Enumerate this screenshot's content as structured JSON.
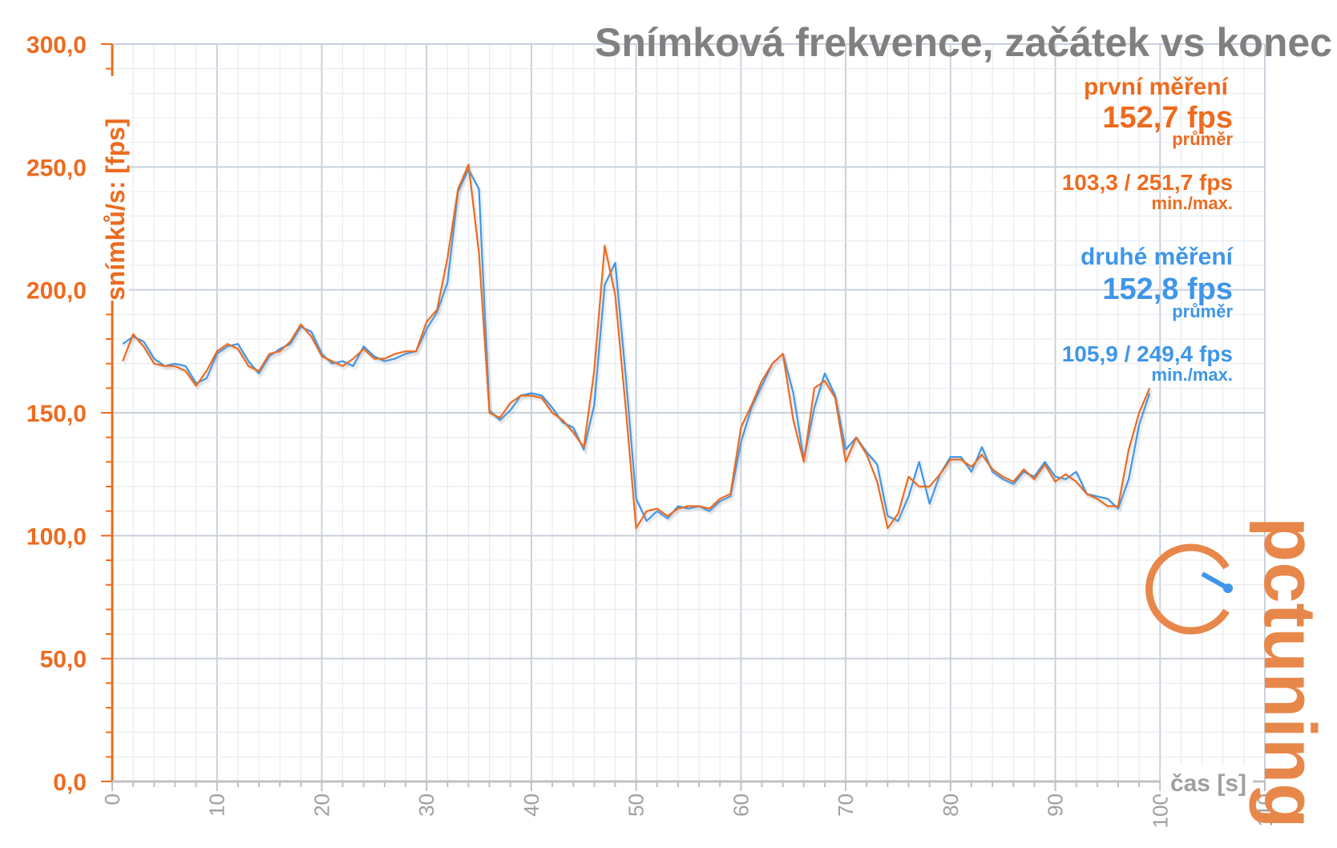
{
  "chart_data": {
    "type": "line",
    "title": "Snímková frekvence, začátek vs konec",
    "ylabel": "snímků/s: [fps]",
    "xlabel": "čas [s]",
    "xlim": [
      0,
      110
    ],
    "ylim": [
      0,
      300
    ],
    "x_ticks": [
      "0",
      "10",
      "20",
      "30",
      "40",
      "50",
      "60",
      "70",
      "80",
      "90",
      "100",
      "110"
    ],
    "y_ticks": [
      "0,0",
      "50,0",
      "100,0",
      "150,0",
      "200,0",
      "250,0",
      "300,0"
    ],
    "grid": true,
    "series": [
      {
        "name": "první měření",
        "color": "#ED6B1F",
        "x": [
          1,
          2,
          3,
          4,
          5,
          6,
          7,
          8,
          9,
          10,
          11,
          12,
          13,
          14,
          15,
          16,
          17,
          18,
          19,
          20,
          21,
          22,
          23,
          24,
          25,
          26,
          27,
          28,
          29,
          30,
          31,
          32,
          33,
          34,
          35,
          36,
          37,
          38,
          39,
          40,
          41,
          42,
          43,
          44,
          45,
          46,
          47,
          48,
          49,
          50,
          51,
          52,
          53,
          54,
          55,
          56,
          57,
          58,
          59,
          60,
          61,
          62,
          63,
          64,
          65,
          66,
          67,
          68,
          69,
          70,
          71,
          72,
          73,
          74,
          75,
          76,
          77,
          78,
          79,
          80,
          81,
          82,
          83,
          84,
          85,
          86,
          87,
          88,
          89,
          90,
          91,
          92,
          93,
          94,
          95,
          96,
          97,
          98,
          99
        ],
        "values": [
          171,
          182,
          177,
          170,
          169,
          169,
          167,
          161,
          167,
          175,
          178,
          176,
          169,
          167,
          174,
          175,
          179,
          186,
          181,
          173,
          171,
          169,
          172,
          176,
          172,
          172,
          174,
          175,
          175,
          187,
          192,
          213,
          241,
          251,
          215,
          150,
          148,
          154,
          157,
          157,
          156,
          150,
          147,
          142,
          136,
          167,
          218,
          198,
          152,
          103,
          110,
          111,
          108,
          111,
          112,
          112,
          111,
          115,
          117,
          144,
          153,
          163,
          170,
          174,
          147,
          130,
          160,
          163,
          156,
          130,
          140,
          133,
          122,
          103,
          109,
          124,
          120,
          120,
          125,
          131,
          131,
          128,
          133,
          127,
          124,
          122,
          127,
          123,
          129,
          122,
          125,
          122,
          117,
          115,
          112,
          112,
          135,
          150,
          160
        ]
      },
      {
        "name": "druhé měření",
        "color": "#3E96E8",
        "x": [
          1,
          2,
          3,
          4,
          5,
          6,
          7,
          8,
          9,
          10,
          11,
          12,
          13,
          14,
          15,
          16,
          17,
          18,
          19,
          20,
          21,
          22,
          23,
          24,
          25,
          26,
          27,
          28,
          29,
          30,
          31,
          32,
          33,
          34,
          35,
          36,
          37,
          38,
          39,
          40,
          41,
          42,
          43,
          44,
          45,
          46,
          47,
          48,
          49,
          50,
          51,
          52,
          53,
          54,
          55,
          56,
          57,
          58,
          59,
          60,
          61,
          62,
          63,
          64,
          65,
          66,
          67,
          68,
          69,
          70,
          71,
          72,
          73,
          74,
          75,
          76,
          77,
          78,
          79,
          80,
          81,
          82,
          83,
          84,
          85,
          86,
          87,
          88,
          89,
          90,
          91,
          92,
          93,
          94,
          95,
          96,
          97,
          98,
          99
        ],
        "values": [
          178,
          181,
          179,
          172,
          169,
          170,
          169,
          162,
          164,
          174,
          177,
          178,
          171,
          166,
          173,
          176,
          178,
          185,
          183,
          174,
          170,
          171,
          169,
          177,
          173,
          171,
          172,
          174,
          175,
          184,
          191,
          203,
          240,
          249,
          241,
          151,
          147,
          151,
          157,
          158,
          157,
          152,
          146,
          144,
          135,
          153,
          202,
          211,
          165,
          115,
          106,
          110,
          107,
          112,
          111,
          112,
          110,
          114,
          116,
          138,
          152,
          161,
          170,
          174,
          158,
          131,
          152,
          166,
          157,
          135,
          140,
          134,
          129,
          108,
          106,
          116,
          130,
          113,
          125,
          132,
          132,
          126,
          136,
          126,
          123,
          121,
          126,
          124,
          130,
          124,
          123,
          126,
          117,
          116,
          115,
          111,
          123,
          145,
          158
        ]
      }
    ],
    "annotations": {
      "first": {
        "label": "první měření",
        "avg": "152,7 fps",
        "avg_label": "průměr",
        "minmax": "103,3 / 251,7 fps",
        "minmax_label": "min./max."
      },
      "second": {
        "label": "druhé měření",
        "avg": "152,8 fps",
        "avg_label": "průměr",
        "minmax": "105,9 / 249,4 fps",
        "minmax_label": "min./max."
      }
    }
  },
  "colors": {
    "accent": "#ED6B1F",
    "second": "#3E96E8",
    "grid": "#D6DCE4",
    "title": "#808080"
  },
  "logo": {
    "text": "pctuning"
  }
}
